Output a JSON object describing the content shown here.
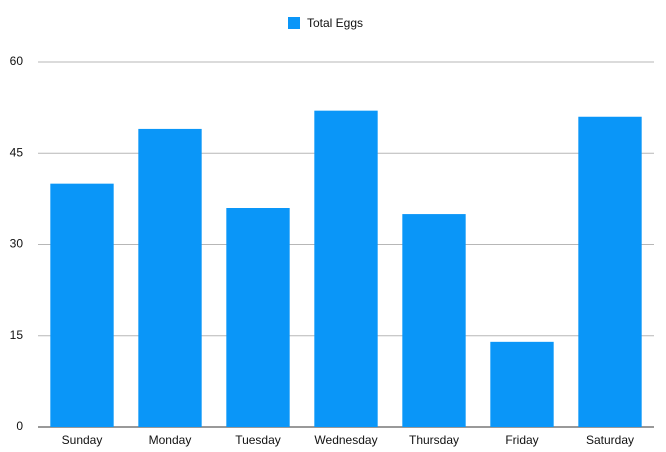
{
  "chart_data": {
    "type": "bar",
    "legend_label": "Total Eggs",
    "categories": [
      "Sunday",
      "Monday",
      "Tuesday",
      "Wednesday",
      "Thursday",
      "Friday",
      "Saturday"
    ],
    "values": [
      40,
      49,
      36,
      52,
      35,
      14,
      51
    ],
    "color": "#0a96f8",
    "ylim": [
      0,
      60
    ],
    "yticks": [
      0,
      15,
      30,
      45,
      60
    ],
    "grid": true,
    "legend": "top"
  }
}
